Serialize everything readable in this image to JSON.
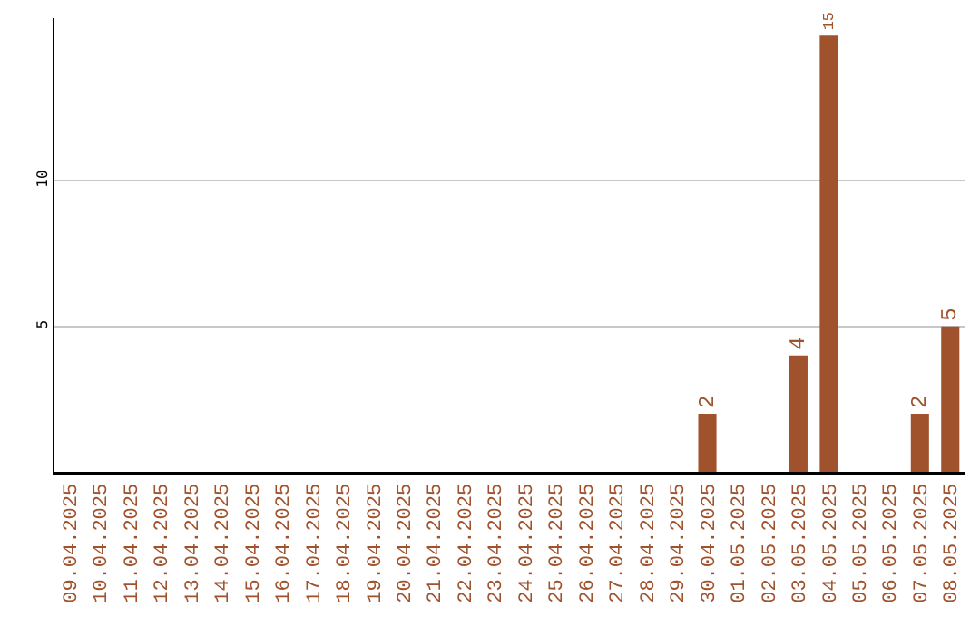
{
  "chart_data": {
    "type": "bar",
    "categories": [
      "09.04.2025",
      "10.04.2025",
      "11.04.2025",
      "12.04.2025",
      "13.04.2025",
      "14.04.2025",
      "15.04.2025",
      "16.04.2025",
      "17.04.2025",
      "18.04.2025",
      "19.04.2025",
      "20.04.2025",
      "21.04.2025",
      "22.04.2025",
      "23.04.2025",
      "24.04.2025",
      "25.04.2025",
      "26.04.2025",
      "27.04.2025",
      "28.04.2025",
      "29.04.2025",
      "30.04.2025",
      "01.05.2025",
      "02.05.2025",
      "03.05.2025",
      "04.05.2025",
      "05.05.2025",
      "06.05.2025",
      "07.05.2025",
      "08.05.2025"
    ],
    "values": [
      0,
      0,
      0,
      0,
      0,
      0,
      0,
      0,
      0,
      0,
      0,
      0,
      0,
      0,
      0,
      0,
      0,
      0,
      0,
      0,
      0,
      2,
      0,
      0,
      4,
      15,
      0,
      0,
      2,
      5
    ],
    "value_labels": [
      null,
      null,
      null,
      null,
      null,
      null,
      null,
      null,
      null,
      null,
      null,
      null,
      null,
      null,
      null,
      null,
      null,
      null,
      null,
      null,
      null,
      "2",
      null,
      null,
      "4",
      "15",
      null,
      null,
      "2",
      "5"
    ],
    "color": "#a0522d",
    "ylim": [
      0,
      15.6
    ],
    "yticks": [
      5,
      10
    ],
    "grid": "y",
    "legend": false
  }
}
